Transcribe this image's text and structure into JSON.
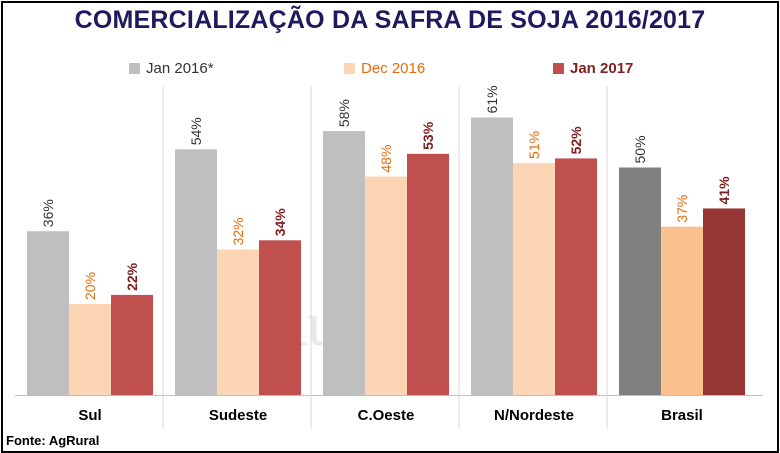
{
  "title": "COMERCIALIZAÇÃO DA SAFRA DE SOJA 2016/2017",
  "source": "Fonte: AgRural",
  "watermark": "AgRural",
  "chart_data": {
    "type": "bar",
    "title": "COMERCIALIZAÇÃO DA SAFRA DE SOJA 2016/2017",
    "categories": [
      "Sul",
      "Sudeste",
      "C.Oeste",
      "N/Nordeste",
      "Brasil"
    ],
    "series": [
      {
        "name": "Jan 2016*",
        "values": [
          36,
          54,
          58,
          61,
          50
        ],
        "labels": [
          "36%",
          "54%",
          "58%",
          "61%",
          "50%"
        ],
        "color": "#bfbfbf",
        "highlight_color": "#808080"
      },
      {
        "name": "Dec 2016",
        "values": [
          20,
          32,
          48,
          51,
          37
        ],
        "labels": [
          "20%",
          "32%",
          "48%",
          "51%",
          "37%"
        ],
        "color": "#fcd5b4",
        "highlight_color": "#fac090"
      },
      {
        "name": "Jan 2017",
        "values": [
          22,
          34,
          53,
          52,
          41
        ],
        "labels": [
          "22%",
          "34%",
          "53%",
          "52%",
          "41%"
        ],
        "color": "#c0504d",
        "highlight_color": "#963634"
      }
    ],
    "legend_colors": {
      "Jan 2016*": "#333333",
      "Dec 2016": "#e46c0a",
      "Jan 2017": "#7f1f1f"
    },
    "ylim": [
      0,
      70
    ],
    "grid": false,
    "legend": "top"
  }
}
